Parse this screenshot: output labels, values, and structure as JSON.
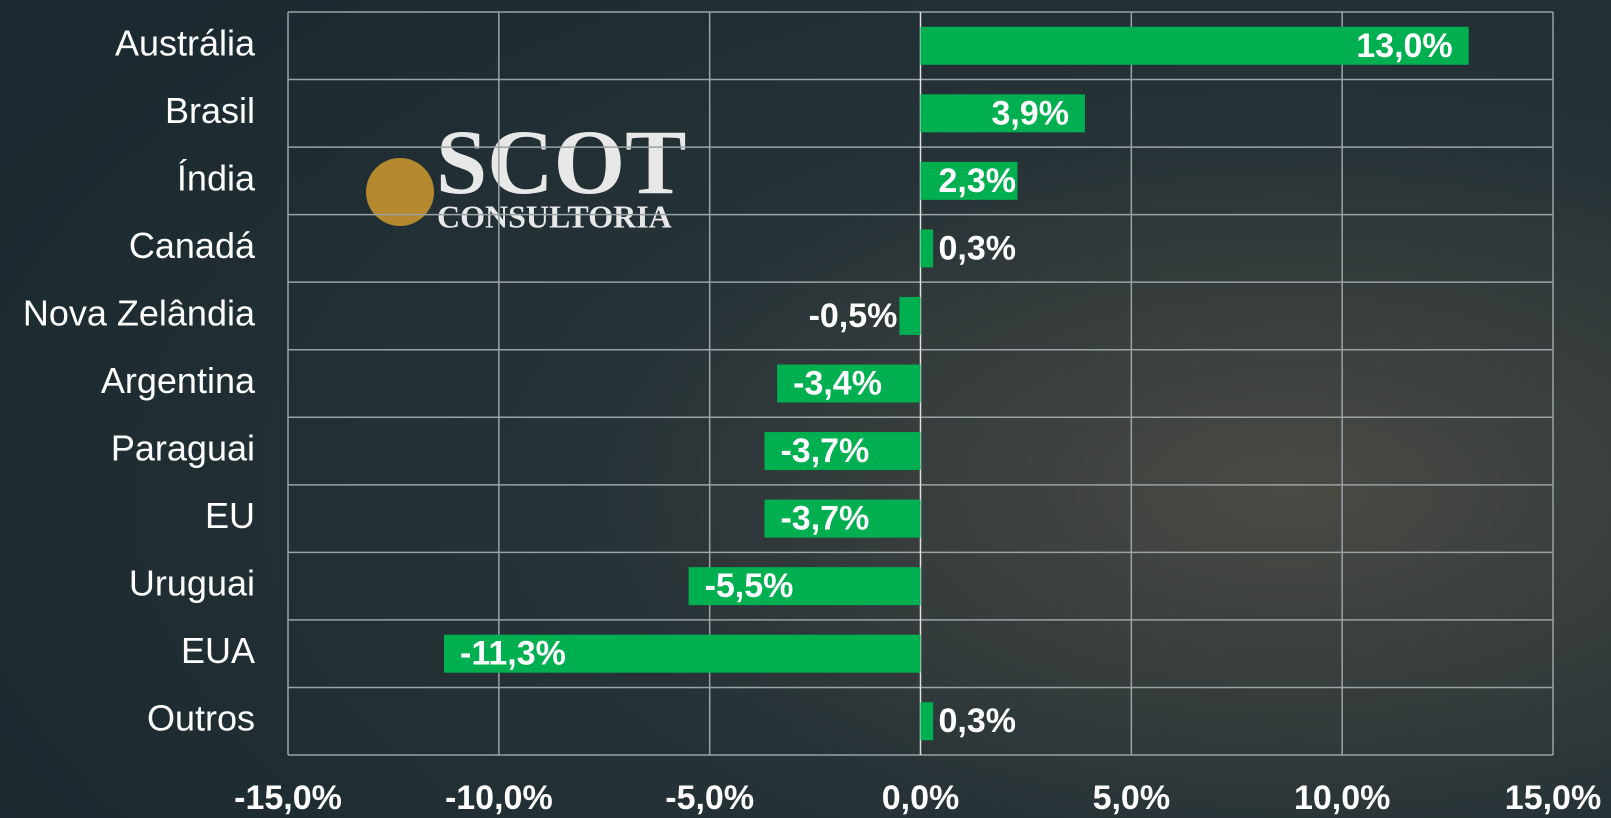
{
  "chart_data": {
    "type": "bar",
    "orientation": "horizontal",
    "categories": [
      "Austrália",
      "Brasil",
      "Índia",
      "Canadá",
      "Nova Zelândia",
      "Argentina",
      "Paraguai",
      "EU",
      "Uruguai",
      "EUA",
      "Outros"
    ],
    "values": [
      13.0,
      3.9,
      2.3,
      0.3,
      -0.5,
      -3.4,
      -3.7,
      -3.7,
      -5.5,
      -11.3,
      0.3
    ],
    "value_labels": [
      "13,0%",
      "3,9%",
      "2,3%",
      "0,3%",
      "-0,5%",
      "-3,4%",
      "-3,7%",
      "-3,7%",
      "-5,5%",
      "-11,3%",
      "0,3%"
    ],
    "color": "#00b050",
    "xlim": [
      -15,
      15
    ],
    "xticks": [
      {
        "value": -15,
        "label": "-15,0%"
      },
      {
        "value": -10,
        "label": "-10,0%"
      },
      {
        "value": -5,
        "label": "-5,0%"
      },
      {
        "value": 0,
        "label": "0,0%"
      },
      {
        "value": 5,
        "label": "5,0%"
      },
      {
        "value": 10,
        "label": "10,0%"
      },
      {
        "value": 15,
        "label": "15,0%"
      }
    ],
    "grid": true
  },
  "logo": {
    "name": "SCOT",
    "subtitle": "CONSULTORIA"
  }
}
